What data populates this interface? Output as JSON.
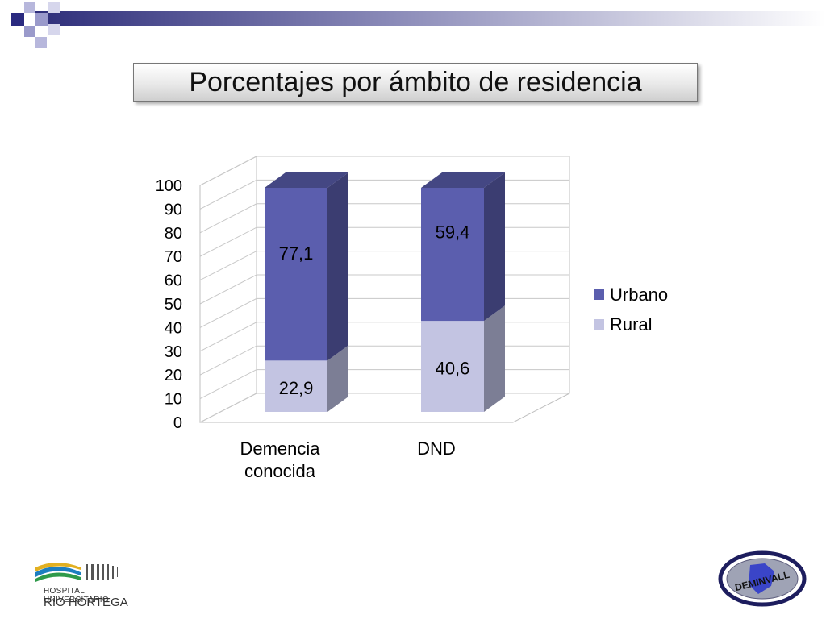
{
  "title": "Porcentajes por ámbito de residencia",
  "colors": {
    "urbano": "#5b5eae",
    "rural": "#c3c4e2",
    "band": "#3c3c8c"
  },
  "chart_data": {
    "type": "bar",
    "stacked": true,
    "three_d": true,
    "categories": [
      "Demencia conocida",
      "DND"
    ],
    "category_lines": [
      [
        "Demencia",
        "conocida"
      ],
      [
        "DND"
      ]
    ],
    "series": [
      {
        "name": "Rural",
        "values": [
          22.9,
          40.6
        ],
        "labels": [
          "22,9",
          "40,6"
        ],
        "color": "#c3c4e2"
      },
      {
        "name": "Urbano",
        "values": [
          77.1,
          59.4
        ],
        "labels": [
          "77,1",
          "59,4"
        ],
        "color": "#5b5eae"
      }
    ],
    "ylim": [
      0,
      100
    ],
    "yticks": [
      0,
      10,
      20,
      30,
      40,
      50,
      60,
      70,
      80,
      90,
      100
    ],
    "grid": true,
    "legend": {
      "position": "right",
      "entries": [
        "Urbano",
        "Rural"
      ]
    }
  },
  "logos": {
    "hospital": {
      "line1": "HOSPITAL UNIVERSITARIO",
      "line2": "RÍO HORTEGA"
    },
    "deminval": {
      "text": "DEMINVALL"
    }
  }
}
